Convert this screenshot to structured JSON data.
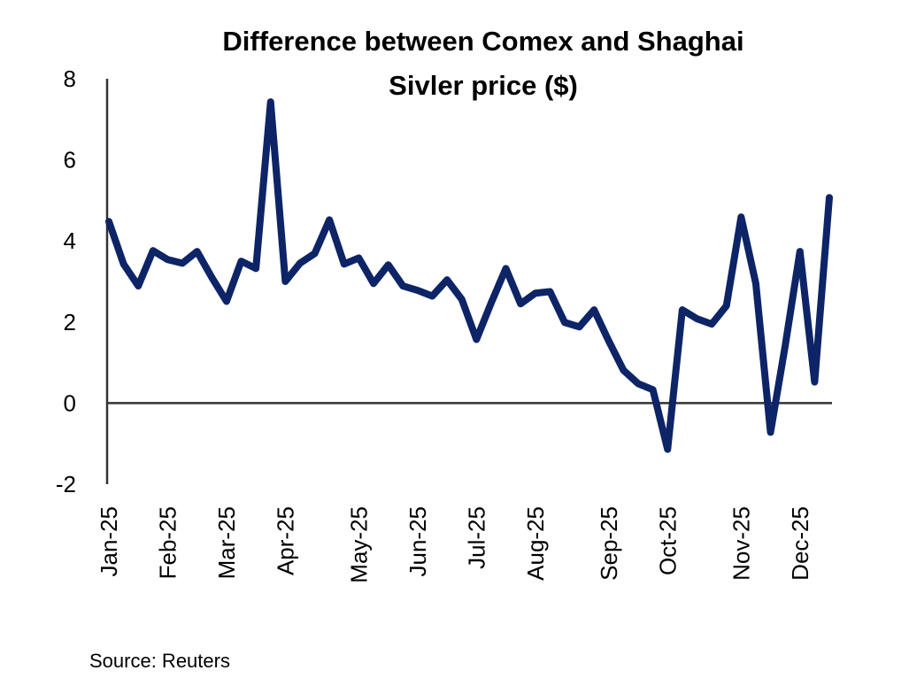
{
  "chart_data": {
    "type": "line",
    "title": [
      "Difference between Comex and Shaghai",
      "Sivler price ($)"
    ],
    "xlabel": "",
    "ylabel": "",
    "ylim": [
      -2,
      8
    ],
    "yticks": [
      8,
      6,
      4,
      2,
      0,
      -2
    ],
    "xticks": [
      {
        "index": 0,
        "label": "Jan-25"
      },
      {
        "index": 4,
        "label": "Feb-25"
      },
      {
        "index": 8,
        "label": "Mar-25"
      },
      {
        "index": 12,
        "label": "Apr-25"
      },
      {
        "index": 17,
        "label": "May-25"
      },
      {
        "index": 21,
        "label": "Jun-25"
      },
      {
        "index": 25,
        "label": "Jul-25"
      },
      {
        "index": 29,
        "label": "Aug-25"
      },
      {
        "index": 34,
        "label": "Sep-25"
      },
      {
        "index": 38,
        "label": "Oct-25"
      },
      {
        "index": 43,
        "label": "Nov-25"
      },
      {
        "index": 47,
        "label": "Dec-25"
      }
    ],
    "grid": false,
    "legend": "none",
    "series": [
      {
        "color": "#0d2466",
        "values": [
          4.48,
          3.43,
          2.89,
          3.76,
          3.54,
          3.45,
          3.74,
          3.1,
          2.51,
          3.5,
          3.32,
          7.43,
          3.0,
          3.45,
          3.69,
          4.52,
          3.43,
          3.58,
          2.95,
          3.41,
          2.89,
          2.78,
          2.64,
          3.04,
          2.56,
          1.57,
          2.47,
          3.32,
          2.45,
          2.71,
          2.75,
          1.99,
          1.88,
          2.3,
          1.53,
          0.81,
          0.48,
          0.33,
          -1.14,
          2.3,
          2.08,
          1.95,
          2.4,
          4.59,
          2.95,
          -0.72,
          1.42,
          3.74,
          0.52,
          5.07
        ]
      }
    ],
    "source": "Source: Reuters"
  }
}
